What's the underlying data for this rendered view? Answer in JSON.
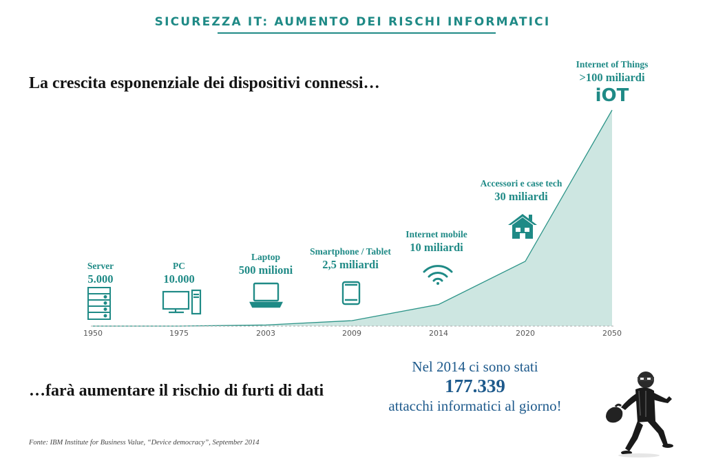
{
  "header": "SICUREZZA IT: AUMENTO DEI RISCHI INFORMATICI",
  "headline": "La crescita esponenziale dei dispositivi connessi…",
  "chart_data": {
    "type": "area",
    "x": [
      "1950",
      "1975",
      "2003",
      "2009",
      "2014",
      "2020",
      "2050"
    ],
    "series": [
      {
        "values": [
          5e-06,
          1e-05,
          0.5,
          2.5,
          10,
          30,
          100
        ]
      }
    ],
    "annotations": [
      {
        "x": "1950",
        "title": "Server",
        "value": "5.000",
        "icon": "server-icon"
      },
      {
        "x": "1975",
        "title": "PC",
        "value": "10.000",
        "icon": "pc-icon"
      },
      {
        "x": "2003",
        "title": "Laptop",
        "value": "500 milioni",
        "icon": "laptop-icon"
      },
      {
        "x": "2009",
        "title": "Smartphone / Tablet",
        "value": "2,5 miliardi",
        "icon": "tablet-icon"
      },
      {
        "x": "2014",
        "title": "Internet mobile",
        "value": "10 miliardi",
        "icon": "wifi-icon"
      },
      {
        "x": "2020",
        "title": "Accessori e case tech",
        "value": "30 miliardi",
        "icon": "house-icon"
      },
      {
        "x": "2050",
        "title": "Internet of Things",
        "value": ">100 miliardi",
        "icon_text": "iOT"
      }
    ],
    "grid": false,
    "colors": {
      "fill": "#cde6e1",
      "line": "#2c9488",
      "text": "#1f8a86",
      "axis": "#999999"
    }
  },
  "bottom_headline": "…farà aumentare il rischio di furti di dati",
  "stat": {
    "line1": "Nel 2014 ci sono stati",
    "number": "177.339",
    "line2": "attacchi informatici al giorno!"
  },
  "source": "Fonte: IBM Institute for Business Value, “Device democracy”,  September 2014",
  "thief_icon": "thief-icon"
}
